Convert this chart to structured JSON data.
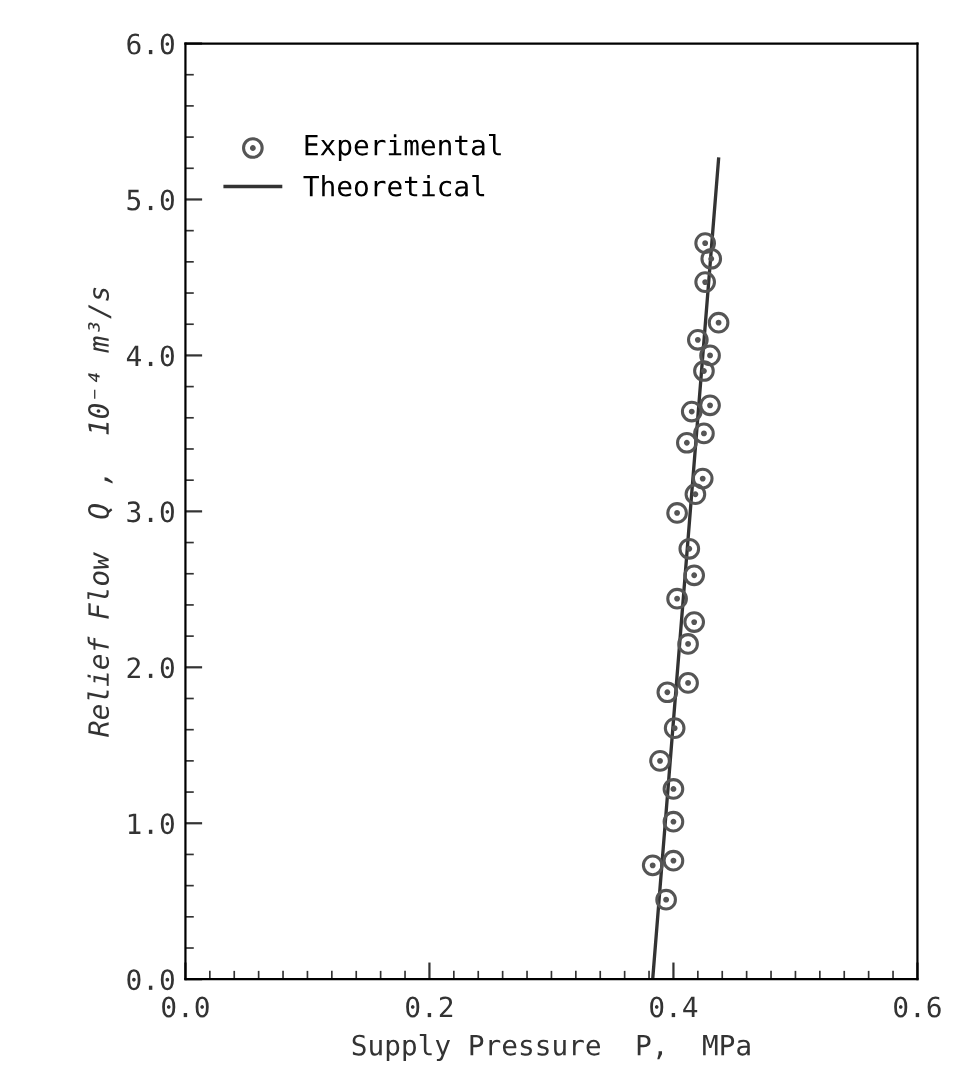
{
  "chart_data": {
    "type": "scatter",
    "xlabel": "Supply Pressure  P,  MPa",
    "ylabel": "Relief Flow  Q ,  10⁻⁴ m³/s",
    "xlim": [
      0.0,
      0.6
    ],
    "ylim": [
      0.0,
      6.0
    ],
    "xticks": [
      {
        "value": 0,
        "label": "0.0"
      },
      0.2,
      0.4,
      0.6
    ],
    "yticks": [
      {
        "value": 0,
        "label": "0.0"
      },
      {
        "value": 1,
        "label": "1.0"
      },
      {
        "value": 2,
        "label": "2.0"
      },
      {
        "value": 3,
        "label": "3.0"
      },
      {
        "value": 4,
        "label": "4.0"
      },
      {
        "value": 5,
        "label": "5.0"
      },
      {
        "value": 6,
        "label": "6.0"
      }
    ],
    "grid": false,
    "legend": "top left",
    "series": [
      {
        "name": "Experimental",
        "color": "#555555",
        "marker": "circle",
        "x": [
          0.426,
          0.431,
          0.426,
          0.437,
          0.42,
          0.43,
          0.425,
          0.415,
          0.43,
          0.425,
          0.411,
          0.424,
          0.418,
          0.403,
          0.413,
          0.417,
          0.403,
          0.417,
          0.412,
          0.412,
          0.395,
          0.401,
          0.389,
          0.4,
          0.4,
          0.383,
          0.4,
          0.394
        ],
        "values": [
          4.72,
          4.62,
          4.47,
          4.21,
          4.1,
          4.0,
          3.9,
          3.64,
          3.68,
          3.5,
          3.44,
          3.21,
          3.11,
          2.99,
          2.76,
          2.59,
          2.44,
          2.29,
          2.15,
          1.9,
          1.84,
          1.61,
          1.4,
          1.22,
          1.01,
          0.73,
          0.76,
          0.51
        ]
      },
      {
        "name": "Theoretical",
        "type": "line",
        "color": "#333333",
        "line_style": "solid",
        "marker": "none",
        "x": [
          0.383,
          0.437
        ],
        "values": [
          0.0,
          5.26
        ]
      }
    ]
  }
}
